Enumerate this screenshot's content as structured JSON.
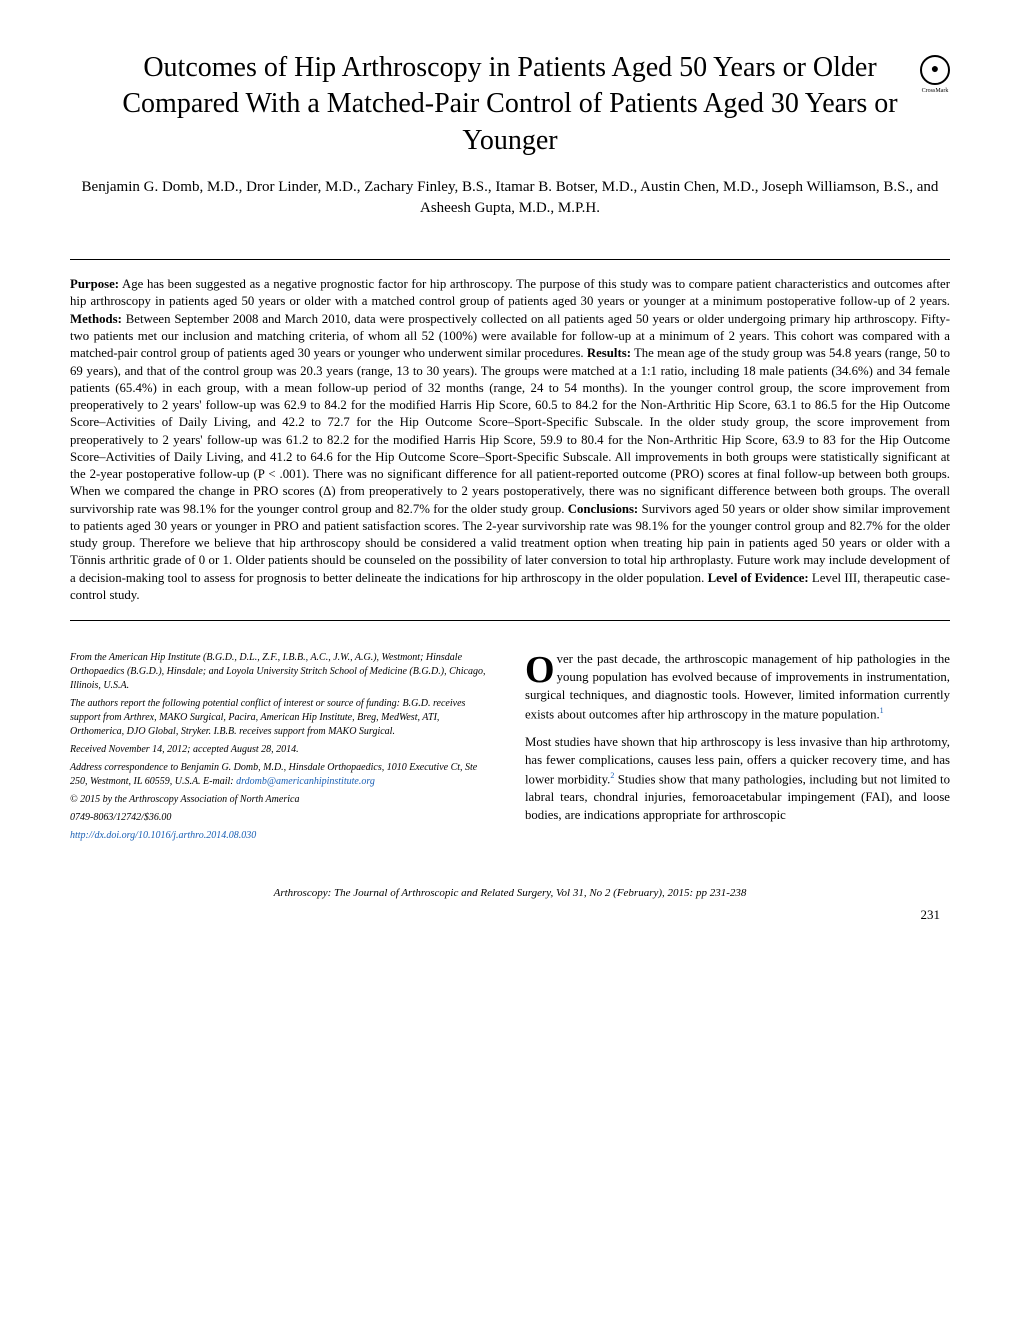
{
  "title": "Outcomes of Hip Arthroscopy in Patients Aged 50 Years or Older Compared With a Matched-Pair Control of Patients Aged 30 Years or Younger",
  "crossmark": {
    "symbol": "●",
    "label": "CrossMark"
  },
  "authors": "Benjamin G. Domb, M.D., Dror Linder, M.D., Zachary Finley, B.S., Itamar B. Botser, M.D., Austin Chen, M.D., Joseph Williamson, B.S., and Asheesh Gupta, M.D., M.P.H.",
  "abstract": {
    "purpose_label": "Purpose:",
    "purpose": " Age has been suggested as a negative prognostic factor for hip arthroscopy. The purpose of this study was to compare patient characteristics and outcomes after hip arthroscopy in patients aged 50 years or older with a matched control group of patients aged 30 years or younger at a minimum postoperative follow-up of 2 years. ",
    "methods_label": "Methods:",
    "methods": " Between September 2008 and March 2010, data were prospectively collected on all patients aged 50 years or older undergoing primary hip arthroscopy. Fifty-two patients met our inclusion and matching criteria, of whom all 52 (100%) were available for follow-up at a minimum of 2 years. This cohort was compared with a matched-pair control group of patients aged 30 years or younger who underwent similar procedures. ",
    "results_label": "Results:",
    "results": " The mean age of the study group was 54.8 years (range, 50 to 69 years), and that of the control group was 20.3 years (range, 13 to 30 years). The groups were matched at a 1:1 ratio, including 18 male patients (34.6%) and 34 female patients (65.4%) in each group, with a mean follow-up period of 32 months (range, 24 to 54 months). In the younger control group, the score improvement from preoperatively to 2 years' follow-up was 62.9 to 84.2 for the modified Harris Hip Score, 60.5 to 84.2 for the Non-Arthritic Hip Score, 63.1 to 86.5 for the Hip Outcome Score–Activities of Daily Living, and 42.2 to 72.7 for the Hip Outcome Score–Sport-Specific Subscale. In the older study group, the score improvement from preoperatively to 2 years' follow-up was 61.2 to 82.2 for the modified Harris Hip Score, 59.9 to 80.4 for the Non-Arthritic Hip Score, 63.9 to 83 for the Hip Outcome Score–Activities of Daily Living, and 41.2 to 64.6 for the Hip Outcome Score–Sport-Specific Subscale. All improvements in both groups were statistically significant at the 2-year postoperative follow-up (P < .001). There was no significant difference for all patient-reported outcome (PRO) scores at final follow-up between both groups. When we compared the change in PRO scores (Δ) from preoperatively to 2 years postoperatively, there was no significant difference between both groups. The overall survivorship rate was 98.1% for the younger control group and 82.7% for the older study group. ",
    "conclusions_label": "Conclusions:",
    "conclusions": " Survivors aged 50 years or older show similar improvement to patients aged 30 years or younger in PRO and patient satisfaction scores. The 2-year survivorship rate was 98.1% for the younger control group and 82.7% for the older study group. Therefore we believe that hip arthroscopy should be considered a valid treatment option when treating hip pain in patients aged 50 years or older with a Tönnis arthritic grade of 0 or 1. Older patients should be counseled on the possibility of later conversion to total hip arthroplasty. Future work may include development of a decision-making tool to assess for prognosis to better delineate the indications for hip arthroscopy in the older population. ",
    "loe_label": "Level of Evidence:",
    "loe": " Level III, therapeutic case-control study."
  },
  "footnotes": {
    "f1": "From the American Hip Institute (B.G.D., D.L., Z.F., I.B.B., A.C., J.W., A.G.), Westmont; Hinsdale Orthopaedics (B.G.D.), Hinsdale; and Loyola University Stritch School of Medicine (B.G.D.), Chicago, Illinois, U.S.A.",
    "f2": "The authors report the following potential conflict of interest or source of funding: B.G.D. receives support from Arthrex, MAKO Surgical, Pacira, American Hip Institute, Breg, MedWest, ATI, Orthomerica, DJO Global, Stryker. I.B.B. receives support from MAKO Surgical.",
    "f3": "Received November 14, 2012; accepted August 28, 2014.",
    "f4": "Address correspondence to Benjamin G. Domb, M.D., Hinsdale Orthopaedics, 1010 Executive Ct, Ste 250, Westmont, IL 60559, U.S.A. E-mail: ",
    "f4_link": "drdomb@americanhipinstitute.org",
    "f5": "© 2015 by the Arthroscopy Association of North America",
    "f6": "0749-8063/12742/$36.00",
    "f7": "http://dx.doi.org/10.1016/j.arthro.2014.08.030"
  },
  "intro": {
    "dropcap": "O",
    "p1_rest": "ver the past decade, the arthroscopic management of hip pathologies in the young population has evolved because of improvements in instrumentation, surgical techniques, and diagnostic tools. However, limited information currently exists about outcomes after hip arthroscopy in the mature population.",
    "p1_sup": "1",
    "p2": "Most studies have shown that hip arthroscopy is less invasive than hip arthrotomy, has fewer complications, causes less pain, offers a quicker recovery time, and has lower morbidity.",
    "p2_sup": "2",
    "p2b": " Studies show that many pathologies, including but not limited to labral tears, chondral injuries, femoroacetabular impingement (FAI), and loose bodies, are indications appropriate for arthroscopic"
  },
  "footer": "Arthroscopy: The Journal of Arthroscopic and Related Surgery, Vol 31, No 2 (February), 2015: pp 231-238",
  "page_num": "231",
  "colors": {
    "text": "#000000",
    "link": "#1a5fb4",
    "bg": "#ffffff"
  },
  "typography": {
    "title_size": 28,
    "authors_size": 15,
    "abstract_size": 12.8,
    "body_size": 12.8,
    "footnote_size": 10,
    "footer_size": 11,
    "dropcap_size": 38,
    "font_family": "Georgia, Times New Roman, serif"
  }
}
